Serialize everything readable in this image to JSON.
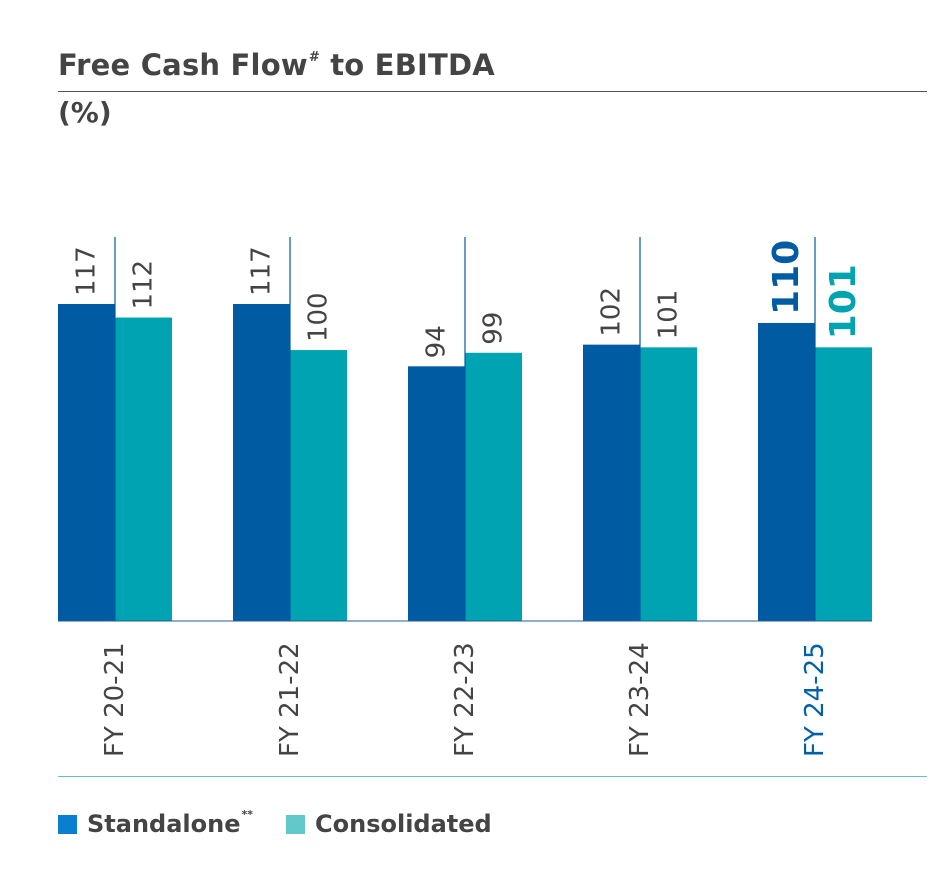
{
  "header": {
    "title_main": "Free Cash Flow",
    "title_mark": "#",
    "title_tail": "to EBITDA",
    "unit": "(%)"
  },
  "colors": {
    "standalone": "#005ba2",
    "consolidated": "#00a3b1",
    "standalone_legend": "#0a7fcf",
    "consolidated_legend": "#62c8cc",
    "highlight_label": "#0060a8",
    "text": "#444444"
  },
  "legend": {
    "standalone_label": "Standalone",
    "standalone_mark": "**",
    "consolidated_label": "Consolidated"
  },
  "chart_data": {
    "type": "bar",
    "title": "Free Cash Flow# to EBITDA",
    "ylabel": "(%)",
    "categories": [
      "FY 20-21",
      "FY 21-22",
      "FY 22-23",
      "FY 23-24",
      "FY 24-25"
    ],
    "highlight_category": "FY 24-25",
    "series": [
      {
        "name": "Standalone**",
        "values": [
          117,
          117,
          94,
          102,
          110
        ]
      },
      {
        "name": "Consolidated",
        "values": [
          112,
          100,
          99,
          101,
          101
        ]
      }
    ],
    "ylim": [
      0,
      117
    ],
    "grid": false,
    "legend_position": "bottom-left"
  }
}
